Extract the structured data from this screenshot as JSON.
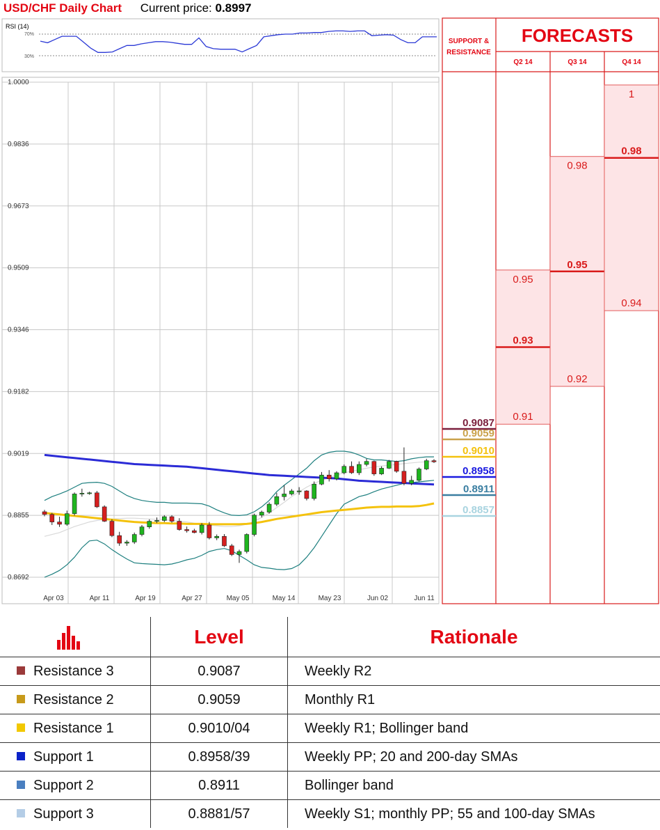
{
  "header": {
    "title": "USD/CHF Daily Chart",
    "current_label": "Current price:",
    "current_value": "0.8997"
  },
  "rsi": {
    "label": "RSI (14)",
    "level_high": "70%",
    "level_low": "30%",
    "values": [
      57,
      54,
      60,
      66,
      66,
      66,
      55,
      44,
      36,
      36,
      37,
      43,
      49,
      49,
      52,
      54,
      56,
      56,
      55,
      53,
      51,
      51,
      63,
      47,
      43,
      42,
      42,
      42,
      37,
      43,
      49,
      65,
      67,
      69,
      70,
      70,
      72,
      72,
      73,
      73,
      75,
      76,
      76,
      75,
      76,
      76,
      67,
      68,
      69,
      68,
      60,
      54,
      54,
      65,
      65,
      65
    ]
  },
  "chart": {
    "y_ticks": [
      "1.0000",
      "0.9836",
      "0.9673",
      "0.9509",
      "0.9346",
      "0.9182",
      "0.9019",
      "0.8855",
      "0.8692"
    ],
    "x_labels": [
      "Apr 03",
      "Apr 11",
      "Apr 19",
      "Apr 27",
      "May 05",
      "May 14",
      "May 23",
      "Jun 02",
      "Jun 11"
    ]
  },
  "chart_data": {
    "type": "candlestick",
    "candles_ohlc": [
      [
        0.8865,
        0.887,
        0.8853,
        0.8858
      ],
      [
        0.8858,
        0.8862,
        0.883,
        0.8838
      ],
      [
        0.8838,
        0.8852,
        0.8825,
        0.8832
      ],
      [
        0.8832,
        0.8868,
        0.8828,
        0.886
      ],
      [
        0.886,
        0.8916,
        0.8855,
        0.8912
      ],
      [
        0.8912,
        0.8926,
        0.8905,
        0.8914
      ],
      [
        0.8914,
        0.8918,
        0.891,
        0.8915
      ],
      [
        0.8915,
        0.892,
        0.8875,
        0.8878
      ],
      [
        0.8878,
        0.8882,
        0.8838,
        0.884
      ],
      [
        0.884,
        0.8845,
        0.8798,
        0.8802
      ],
      [
        0.8802,
        0.8812,
        0.8775,
        0.8782
      ],
      [
        0.8782,
        0.879,
        0.8775,
        0.8785
      ],
      [
        0.8785,
        0.881,
        0.878,
        0.8805
      ],
      [
        0.8805,
        0.883,
        0.88,
        0.8825
      ],
      [
        0.8825,
        0.8845,
        0.882,
        0.884
      ],
      [
        0.884,
        0.885,
        0.8835,
        0.8842
      ],
      [
        0.8842,
        0.8856,
        0.8838,
        0.8852
      ],
      [
        0.8852,
        0.8856,
        0.8836,
        0.884
      ],
      [
        0.884,
        0.8848,
        0.8815,
        0.8818
      ],
      [
        0.8818,
        0.8826,
        0.881,
        0.8815
      ],
      [
        0.8815,
        0.882,
        0.8808,
        0.881
      ],
      [
        0.881,
        0.8835,
        0.8805,
        0.883
      ],
      [
        0.883,
        0.8838,
        0.8792,
        0.8796
      ],
      [
        0.8796,
        0.8805,
        0.879,
        0.88
      ],
      [
        0.88,
        0.8806,
        0.8772,
        0.8775
      ],
      [
        0.8775,
        0.878,
        0.8748,
        0.8752
      ],
      [
        0.8752,
        0.8765,
        0.873,
        0.876
      ],
      [
        0.876,
        0.8808,
        0.8755,
        0.8805
      ],
      [
        0.8805,
        0.886,
        0.88,
        0.8856
      ],
      [
        0.8856,
        0.8868,
        0.885,
        0.8864
      ],
      [
        0.8864,
        0.889,
        0.886,
        0.8885
      ],
      [
        0.8885,
        0.8915,
        0.888,
        0.8905
      ],
      [
        0.8905,
        0.8935,
        0.8895,
        0.8912
      ],
      [
        0.8912,
        0.8925,
        0.8908,
        0.892
      ],
      [
        0.892,
        0.893,
        0.891,
        0.892
      ],
      [
        0.892,
        0.8922,
        0.8895,
        0.89
      ],
      [
        0.89,
        0.8945,
        0.8895,
        0.8938
      ],
      [
        0.8938,
        0.897,
        0.8935,
        0.8962
      ],
      [
        0.8962,
        0.8975,
        0.8945,
        0.8952
      ],
      [
        0.8952,
        0.8972,
        0.8948,
        0.8968
      ],
      [
        0.8968,
        0.899,
        0.8964,
        0.8985
      ],
      [
        0.8985,
        0.8998,
        0.8965,
        0.8968
      ],
      [
        0.8968,
        0.8998,
        0.8962,
        0.899
      ],
      [
        0.899,
        0.9005,
        0.8985,
        0.8998
      ],
      [
        0.8998,
        0.9,
        0.896,
        0.8965
      ],
      [
        0.8965,
        0.8985,
        0.8962,
        0.898
      ],
      [
        0.898,
        0.9002,
        0.8978,
        0.8998
      ],
      [
        0.8998,
        0.9,
        0.8968,
        0.8972
      ],
      [
        0.8972,
        0.9035,
        0.8935,
        0.894
      ],
      [
        0.894,
        0.896,
        0.8935,
        0.8948
      ],
      [
        0.8948,
        0.8982,
        0.8945,
        0.8978
      ],
      [
        0.8978,
        0.9005,
        0.8975,
        0.9
      ],
      [
        0.9,
        0.9004,
        0.8994,
        0.8997
      ]
    ],
    "sma_blue": [
      0.9015,
      0.9013,
      0.9011,
      0.9009,
      0.9007,
      0.9005,
      0.9003,
      0.9001,
      0.8999,
      0.8997,
      0.8995,
      0.8993,
      0.8991,
      0.899,
      0.8989,
      0.8988,
      0.8987,
      0.8986,
      0.8985,
      0.8984,
      0.8982,
      0.898,
      0.8978,
      0.8976,
      0.8974,
      0.8972,
      0.897,
      0.8968,
      0.8966,
      0.8964,
      0.8962,
      0.8961,
      0.896,
      0.8959,
      0.8958,
      0.8957,
      0.8956,
      0.8955,
      0.8954,
      0.8953,
      0.8951,
      0.8949,
      0.8947,
      0.8946,
      0.8945,
      0.8944,
      0.8943,
      0.8942,
      0.8941,
      0.894,
      0.8939,
      0.8938,
      0.8937
    ],
    "sma_yellow": [
      0.8862,
      0.886,
      0.8858,
      0.8856,
      0.8854,
      0.8852,
      0.885,
      0.8848,
      0.8846,
      0.8844,
      0.8842,
      0.884,
      0.8838,
      0.8837,
      0.8836,
      0.8835,
      0.8835,
      0.8834,
      0.8834,
      0.8833,
      0.8833,
      0.8833,
      0.8832,
      0.8832,
      0.8832,
      0.8832,
      0.8832,
      0.8833,
      0.8835,
      0.8838,
      0.8842,
      0.8846,
      0.8849,
      0.8852,
      0.8855,
      0.8858,
      0.8861,
      0.8864,
      0.8866,
      0.8868,
      0.887,
      0.8872,
      0.8874,
      0.8876,
      0.8877,
      0.8878,
      0.8878,
      0.8879,
      0.8879,
      0.8879,
      0.888,
      0.8883,
      0.8887
    ],
    "bb_upper": [
      0.8895,
      0.8905,
      0.8912,
      0.892,
      0.893,
      0.894,
      0.8942,
      0.8943,
      0.894,
      0.8932,
      0.892,
      0.8908,
      0.89,
      0.8895,
      0.8892,
      0.889,
      0.889,
      0.8888,
      0.8888,
      0.8888,
      0.8887,
      0.8886,
      0.888,
      0.887,
      0.8862,
      0.8856,
      0.8855,
      0.8857,
      0.8865,
      0.8878,
      0.8895,
      0.8918,
      0.8935,
      0.895,
      0.8965,
      0.898,
      0.9,
      0.9015,
      0.9022,
      0.9025,
      0.9025,
      0.9022,
      0.9015,
      0.9006,
      0.9002,
      0.9002,
      0.9,
      0.8998,
      0.9,
      0.9005,
      0.9008,
      0.901,
      0.901
    ],
    "bb_lower": [
      0.8692,
      0.87,
      0.871,
      0.8725,
      0.8745,
      0.877,
      0.8788,
      0.879,
      0.878,
      0.8765,
      0.8752,
      0.874,
      0.873,
      0.8728,
      0.8727,
      0.8726,
      0.8725,
      0.8727,
      0.8732,
      0.8738,
      0.8742,
      0.875,
      0.876,
      0.8765,
      0.8768,
      0.8762,
      0.875,
      0.8738,
      0.8725,
      0.8718,
      0.8716,
      0.8713,
      0.8712,
      0.8715,
      0.8725,
      0.8745,
      0.877,
      0.88,
      0.883,
      0.886,
      0.8885,
      0.8895,
      0.8905,
      0.891,
      0.8918,
      0.8925,
      0.893,
      0.8935,
      0.894,
      0.8942,
      0.8944,
      0.8946,
      0.8948
    ],
    "sma_light": [
      0.88,
      0.8805,
      0.881,
      0.8818,
      0.8826,
      0.8832,
      0.8838,
      0.8842,
      0.8845,
      0.8846,
      0.8847,
      0.8848,
      0.8848,
      0.8847,
      0.8846,
      0.8845,
      0.8844,
      0.8842,
      0.884,
      0.8838,
      0.8835,
      0.8833,
      0.883,
      0.8828,
      0.8826,
      0.8826,
      0.8828,
      0.8832,
      0.884,
      0.885,
      0.8862,
      0.8876,
      0.889,
      0.8905,
      0.8918,
      0.893,
      0.894,
      0.8948,
      0.8955,
      0.8962,
      0.8968,
      0.8972,
      0.8976,
      0.898,
      0.8983,
      0.8986,
      0.8988,
      0.899,
      0.8992,
      0.8994,
      0.8996,
      0.8997,
      0.8998
    ],
    "price_axis": [
      0.8692,
      1.0
    ],
    "support_resistance": [
      {
        "label": "0.9087",
        "value": 0.9087,
        "color": "#7b1f3c"
      },
      {
        "label": "0.9059",
        "value": 0.9059,
        "color": "#caa24b"
      },
      {
        "label": "0.9010",
        "value": 0.901,
        "color": "#f4c20d"
      },
      {
        "label": "0.8958",
        "value": 0.8958,
        "color": "#1a1ae0"
      },
      {
        "label": "0.8911",
        "value": 0.8911,
        "color": "#3a7ea1"
      },
      {
        "label": "0.8857",
        "value": 0.8857,
        "color": "#a9d4e0"
      }
    ]
  },
  "forecasts": {
    "title": "FORECASTS",
    "sr_heading": [
      "SUPPORT &",
      "RESISTANCE"
    ],
    "quarters": [
      {
        "label": "Q2 14",
        "low": 0.91,
        "mid": 0.93,
        "high": 0.95
      },
      {
        "label": "Q3 14",
        "low": 0.92,
        "mid": 0.95,
        "high": 0.98
      },
      {
        "label": "Q4 14",
        "low": 0.94,
        "mid": 0.98,
        "high": 1.0
      }
    ],
    "labels": {
      "low": [
        "0.91",
        "0.92",
        "0.94"
      ],
      "mid": [
        "0.93",
        "0.95",
        "0.98"
      ],
      "high": [
        "0.95",
        "0.98",
        "1"
      ]
    }
  },
  "levels_table": {
    "headers": [
      "Level",
      "Rationale"
    ],
    "rows": [
      {
        "name": "Resistance 3",
        "level": "0.9087",
        "rationale": "Weekly R2",
        "color": "#9b3a3a"
      },
      {
        "name": "Resistance 2",
        "level": "0.9059",
        "rationale": "Monthly R1",
        "color": "#c79a1a"
      },
      {
        "name": "Resistance 1",
        "level": "0.9010/04",
        "rationale": "Weekly R1; Bollinger band",
        "color": "#f2c800"
      },
      {
        "name": "Support 1",
        "level": "0.8958/39",
        "rationale": "Weekly PP; 20 and 200-day SMAs",
        "color": "#0b22c8"
      },
      {
        "name": "Support 2",
        "level": "0.8911",
        "rationale": "Bollinger band",
        "color": "#4a7fc0"
      },
      {
        "name": "Support 3",
        "level": "0.8881/57",
        "rationale": "Weekly S1; monthly PP; 55 and 100-day SMAs",
        "color": "#b4cde6"
      }
    ]
  }
}
